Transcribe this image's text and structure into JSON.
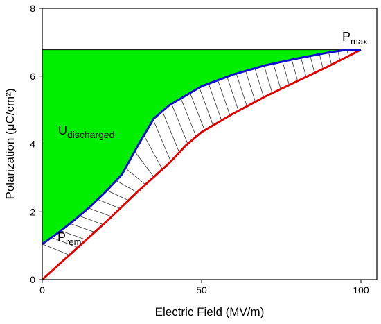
{
  "chart_data": {
    "type": "line",
    "xlabel": "Electric Field (MV/m)",
    "ylabel": "Polarization (μC/cm²)",
    "xlim": [
      0,
      105
    ],
    "ylim": [
      0,
      8
    ],
    "xticks": [
      0,
      50,
      100
    ],
    "yticks": [
      0,
      2,
      4,
      6,
      8
    ],
    "grid": false,
    "annotations": {
      "p_max": {
        "base": "P",
        "sub": "max."
      },
      "p_rem": {
        "base": "P",
        "sub": "rem"
      },
      "u_discharged": {
        "base": "U",
        "sub": "discharged"
      }
    },
    "series": [
      {
        "color": "#e00000",
        "x": [
          0,
          10,
          20,
          30,
          40,
          45,
          50,
          60,
          70,
          80,
          90,
          100
        ],
        "y": [
          0,
          0.85,
          1.7,
          2.6,
          3.45,
          3.95,
          4.35,
          4.9,
          5.4,
          5.85,
          6.3,
          6.78
        ]
      },
      {
        "color": "#1010d0",
        "x": [
          0,
          5,
          10,
          15,
          20,
          25,
          30,
          35,
          40,
          50,
          60,
          70,
          80,
          90,
          95,
          100
        ],
        "y": [
          1.05,
          1.38,
          1.75,
          2.15,
          2.6,
          3.1,
          3.95,
          4.75,
          5.15,
          5.7,
          6.05,
          6.32,
          6.52,
          6.7,
          6.77,
          6.78
        ]
      }
    ],
    "fills": {
      "discharged_color": "#00ee00",
      "loss_hatch_color": "#333333"
    }
  }
}
